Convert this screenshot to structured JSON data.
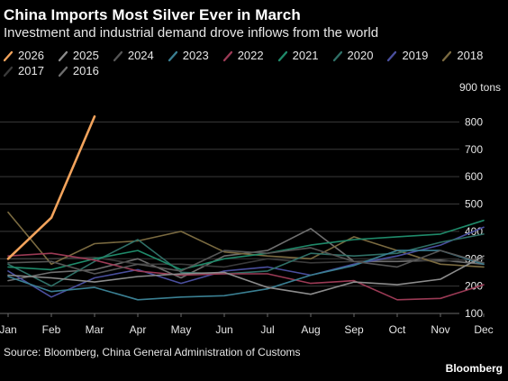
{
  "chart_data": {
    "type": "line",
    "title": "China Imports Most Silver Ever in March",
    "subtitle": "Investment and industrial demand drove inflows from the world",
    "ylabel": "",
    "unit": "900 tons",
    "categories": [
      "Jan",
      "Feb",
      "Mar",
      "Apr",
      "May",
      "Jun",
      "Jul",
      "Aug",
      "Sep",
      "Oct",
      "Nov",
      "Dec"
    ],
    "ylim": [
      100,
      900
    ],
    "yticks": [
      100,
      200,
      300,
      400,
      500,
      600,
      700,
      800
    ],
    "grid": true,
    "legend_position": "top",
    "source": "Source: Bloomberg, China General Administration of Customs",
    "brand": "Bloomberg",
    "series": [
      {
        "name": "2026",
        "color": "#f2a35c",
        "values": [
          300,
          450,
          820,
          null,
          null,
          null,
          null,
          null,
          null,
          null,
          null,
          null
        ]
      },
      {
        "name": "2025",
        "color": "#8c8c8c",
        "values": [
          240,
          230,
          215,
          235,
          245,
          250,
          195,
          170,
          215,
          205,
          225,
          310
        ]
      },
      {
        "name": "2024",
        "color": "#555555",
        "values": [
          285,
          290,
          245,
          280,
          255,
          330,
          320,
          340,
          290,
          270,
          330,
          285
        ]
      },
      {
        "name": "2023",
        "color": "#3a7f92",
        "values": [
          235,
          180,
          195,
          150,
          160,
          165,
          190,
          240,
          275,
          330,
          330,
          280
        ]
      },
      {
        "name": "2022",
        "color": "#9b3a55",
        "values": [
          310,
          320,
          295,
          255,
          240,
          245,
          245,
          210,
          220,
          150,
          155,
          205
        ]
      },
      {
        "name": "2021",
        "color": "#1f8a6a",
        "values": [
          270,
          260,
          300,
          330,
          260,
          300,
          320,
          350,
          370,
          380,
          390,
          440
        ]
      },
      {
        "name": "2020",
        "color": "#2f6f66",
        "values": [
          280,
          200,
          290,
          370,
          250,
          245,
          255,
          320,
          310,
          320,
          360,
          390
        ]
      },
      {
        "name": "2019",
        "color": "#4a4f9e",
        "values": [
          255,
          160,
          230,
          260,
          210,
          255,
          270,
          240,
          280,
          310,
          350,
          415
        ]
      },
      {
        "name": "2018",
        "color": "#7a6a40",
        "values": [
          470,
          280,
          355,
          365,
          400,
          325,
          310,
          300,
          380,
          330,
          280,
          270
        ]
      },
      {
        "name": "2017",
        "color": "#3a3a3a",
        "values": [
          300,
          300,
          305,
          280,
          280,
          270,
          300,
          285,
          290,
          300,
          290,
          300
        ]
      },
      {
        "name": "2016",
        "color": "#6e6e6e",
        "values": [
          220,
          250,
          260,
          300,
          230,
          310,
          330,
          410,
          290,
          290,
          295,
          280
        ]
      }
    ]
  }
}
